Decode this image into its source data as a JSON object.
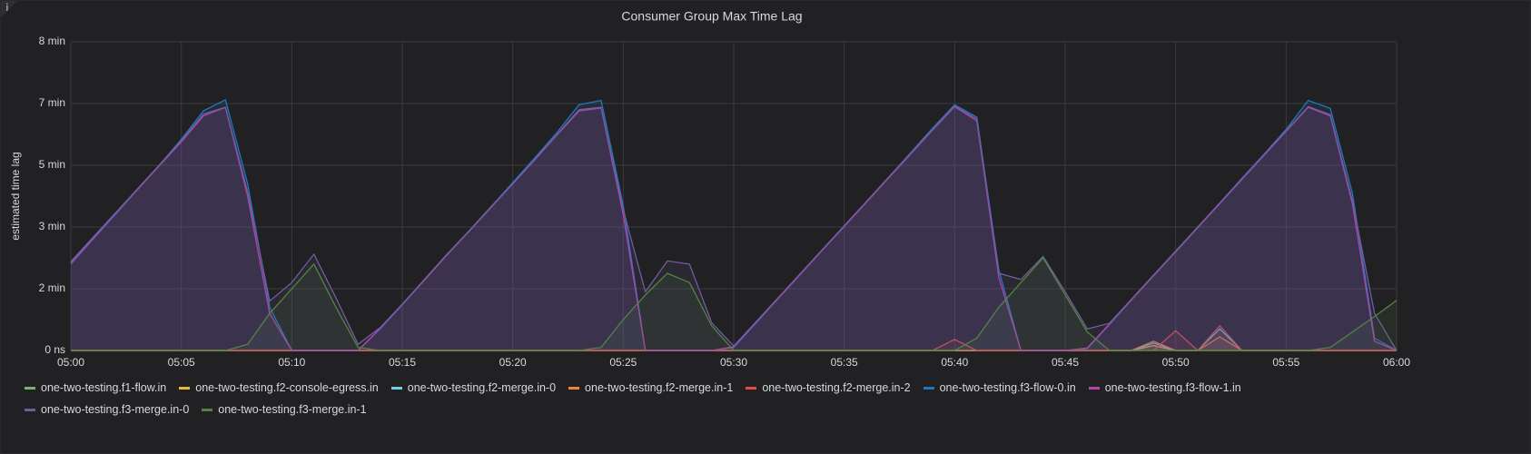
{
  "chart_data": {
    "type": "line",
    "title": "Consumer Group Max Time Lag",
    "y_label": "estimated time lag",
    "x": [
      "05:00",
      "05:01",
      "05:02",
      "05:03",
      "05:04",
      "05:05",
      "05:06",
      "05:07",
      "05:08",
      "05:09",
      "05:10",
      "05:11",
      "05:12",
      "05:13",
      "05:14",
      "05:15",
      "05:16",
      "05:17",
      "05:18",
      "05:19",
      "05:20",
      "05:21",
      "05:22",
      "05:23",
      "05:24",
      "05:25",
      "05:26",
      "05:27",
      "05:28",
      "05:29",
      "05:30",
      "05:31",
      "05:32",
      "05:33",
      "05:34",
      "05:35",
      "05:36",
      "05:37",
      "05:38",
      "05:39",
      "05:40",
      "05:41",
      "05:42",
      "05:43",
      "05:44",
      "05:45",
      "05:46",
      "05:47",
      "05:48",
      "05:49",
      "05:50",
      "05:51",
      "05:52",
      "05:53",
      "05:54",
      "05:55",
      "05:56",
      "05:57",
      "05:58",
      "05:59",
      "06:00"
    ],
    "xticks": [
      "05:00",
      "05:05",
      "05:10",
      "05:15",
      "05:20",
      "05:25",
      "05:30",
      "05:35",
      "05:40",
      "05:45",
      "05:50",
      "05:55",
      "06:00"
    ],
    "ylim": [
      0,
      500
    ],
    "yticks": [
      {
        "value": 0,
        "label": "0 ns"
      },
      {
        "value": 100,
        "label": "2 min"
      },
      {
        "value": 200,
        "label": "3 min"
      },
      {
        "value": 300,
        "label": "5 min"
      },
      {
        "value": 400,
        "label": "7 min"
      },
      {
        "value": 500,
        "label": "8 min"
      }
    ],
    "grid": true,
    "legend": "bottom",
    "series": [
      {
        "name": "one-two-testing.f1-flow.in",
        "color": "#7eb26d",
        "values": [
          0,
          0,
          0,
          0,
          0,
          0,
          0,
          0,
          0,
          0,
          0,
          0,
          0,
          0,
          0,
          0,
          0,
          0,
          0,
          0,
          0,
          0,
          0,
          0,
          0,
          0,
          0,
          0,
          0,
          0,
          0,
          0,
          0,
          0,
          0,
          0,
          0,
          0,
          0,
          0,
          0,
          0,
          0,
          0,
          0,
          0,
          0,
          0,
          0,
          0,
          0,
          0,
          0,
          0,
          0,
          0,
          0,
          0,
          0,
          0,
          0
        ]
      },
      {
        "name": "one-two-testing.f2-console-egress.in",
        "color": "#eab839",
        "values": [
          0,
          0,
          0,
          0,
          0,
          0,
          0,
          0,
          0,
          0,
          0,
          0,
          0,
          0,
          0,
          0,
          0,
          0,
          0,
          0,
          0,
          0,
          0,
          0,
          0,
          0,
          0,
          0,
          0,
          0,
          0,
          0,
          0,
          0,
          0,
          0,
          0,
          0,
          0,
          0,
          0,
          0,
          0,
          0,
          0,
          0,
          0,
          0,
          0,
          8,
          0,
          0,
          0,
          0,
          0,
          0,
          0,
          0,
          0,
          0,
          0
        ]
      },
      {
        "name": "one-two-testing.f2-merge.in-0",
        "color": "#6ed0e0",
        "values": [
          0,
          0,
          0,
          0,
          0,
          0,
          0,
          0,
          0,
          0,
          0,
          0,
          0,
          0,
          0,
          0,
          0,
          0,
          0,
          0,
          0,
          0,
          0,
          0,
          0,
          0,
          0,
          0,
          0,
          0,
          0,
          0,
          0,
          0,
          0,
          0,
          0,
          0,
          0,
          0,
          0,
          0,
          0,
          0,
          0,
          0,
          0,
          0,
          0,
          12,
          0,
          0,
          35,
          0,
          0,
          0,
          0,
          0,
          0,
          0,
          0
        ]
      },
      {
        "name": "one-two-testing.f2-merge.in-1",
        "color": "#ef843c",
        "values": [
          0,
          0,
          0,
          0,
          0,
          0,
          0,
          0,
          0,
          0,
          0,
          0,
          0,
          0,
          0,
          0,
          0,
          0,
          0,
          0,
          0,
          0,
          0,
          0,
          0,
          0,
          0,
          0,
          0,
          0,
          0,
          0,
          0,
          0,
          0,
          0,
          0,
          0,
          0,
          0,
          0,
          0,
          0,
          0,
          0,
          0,
          0,
          0,
          0,
          15,
          0,
          0,
          22,
          0,
          0,
          0,
          0,
          0,
          0,
          0,
          0
        ]
      },
      {
        "name": "one-two-testing.f2-merge.in-2",
        "color": "#e24d42",
        "values": [
          0,
          0,
          0,
          0,
          0,
          0,
          0,
          0,
          0,
          0,
          0,
          0,
          0,
          0,
          0,
          0,
          0,
          0,
          0,
          0,
          0,
          0,
          0,
          0,
          0,
          0,
          0,
          0,
          0,
          0,
          0,
          0,
          0,
          0,
          0,
          0,
          0,
          0,
          0,
          0,
          18,
          0,
          0,
          0,
          0,
          0,
          0,
          0,
          0,
          0,
          32,
          0,
          40,
          0,
          0,
          0,
          0,
          0,
          0,
          0,
          0
        ]
      },
      {
        "name": "one-two-testing.f3-flow-0.in",
        "color": "#1f78c1",
        "values": [
          140,
          180,
          220,
          260,
          300,
          342,
          388,
          406,
          270,
          70,
          0,
          0,
          0,
          0,
          35,
          74,
          114,
          154,
          193,
          232,
          272,
          312,
          353,
          398,
          405,
          235,
          0,
          0,
          0,
          0,
          5,
          44,
          84,
          123,
          162,
          201,
          240,
          280,
          320,
          360,
          398,
          378,
          130,
          0,
          0,
          0,
          3,
          42,
          82,
          121,
          160,
          199,
          239,
          279,
          318,
          358,
          405,
          392,
          255,
          20,
          0
        ]
      },
      {
        "name": "one-two-testing.f3-flow-1.in",
        "color": "#ba43a9",
        "values": [
          142,
          181,
          221,
          260,
          299,
          338,
          380,
          394,
          250,
          60,
          0,
          0,
          0,
          0,
          36,
          75,
          114,
          154,
          192,
          231,
          270,
          309,
          349,
          388,
          393,
          220,
          0,
          0,
          0,
          0,
          6,
          45,
          84,
          123,
          162,
          201,
          240,
          279,
          318,
          357,
          395,
          372,
          118,
          0,
          0,
          0,
          4,
          43,
          82,
          121,
          160,
          199,
          238,
          277,
          316,
          355,
          394,
          380,
          238,
          15,
          0
        ]
      },
      {
        "name": "one-two-testing.f3-merge.in-0",
        "color": "#705da0",
        "values": [
          144,
          183,
          222,
          261,
          300,
          340,
          383,
          394,
          257,
          80,
          110,
          156,
          85,
          10,
          37,
          75,
          115,
          155,
          193,
          232,
          270,
          310,
          350,
          390,
          394,
          228,
          95,
          145,
          140,
          45,
          7,
          46,
          85,
          124,
          163,
          202,
          241,
          280,
          319,
          358,
          396,
          375,
          125,
          115,
          152,
          95,
          35,
          44,
          83,
          122,
          161,
          200,
          239,
          278,
          317,
          356,
          395,
          382,
          243,
          60,
          0
        ]
      },
      {
        "name": "one-two-testing.f3-merge.in-1",
        "color": "#508642",
        "values": [
          0,
          0,
          0,
          0,
          0,
          0,
          0,
          0,
          10,
          60,
          100,
          140,
          70,
          5,
          0,
          0,
          0,
          0,
          0,
          0,
          0,
          0,
          0,
          0,
          5,
          50,
          90,
          125,
          110,
          40,
          0,
          0,
          0,
          0,
          0,
          0,
          0,
          0,
          0,
          0,
          0,
          20,
          70,
          110,
          150,
          90,
          30,
          0,
          0,
          0,
          0,
          0,
          0,
          0,
          0,
          0,
          0,
          5,
          30,
          55,
          81
        ]
      }
    ]
  }
}
